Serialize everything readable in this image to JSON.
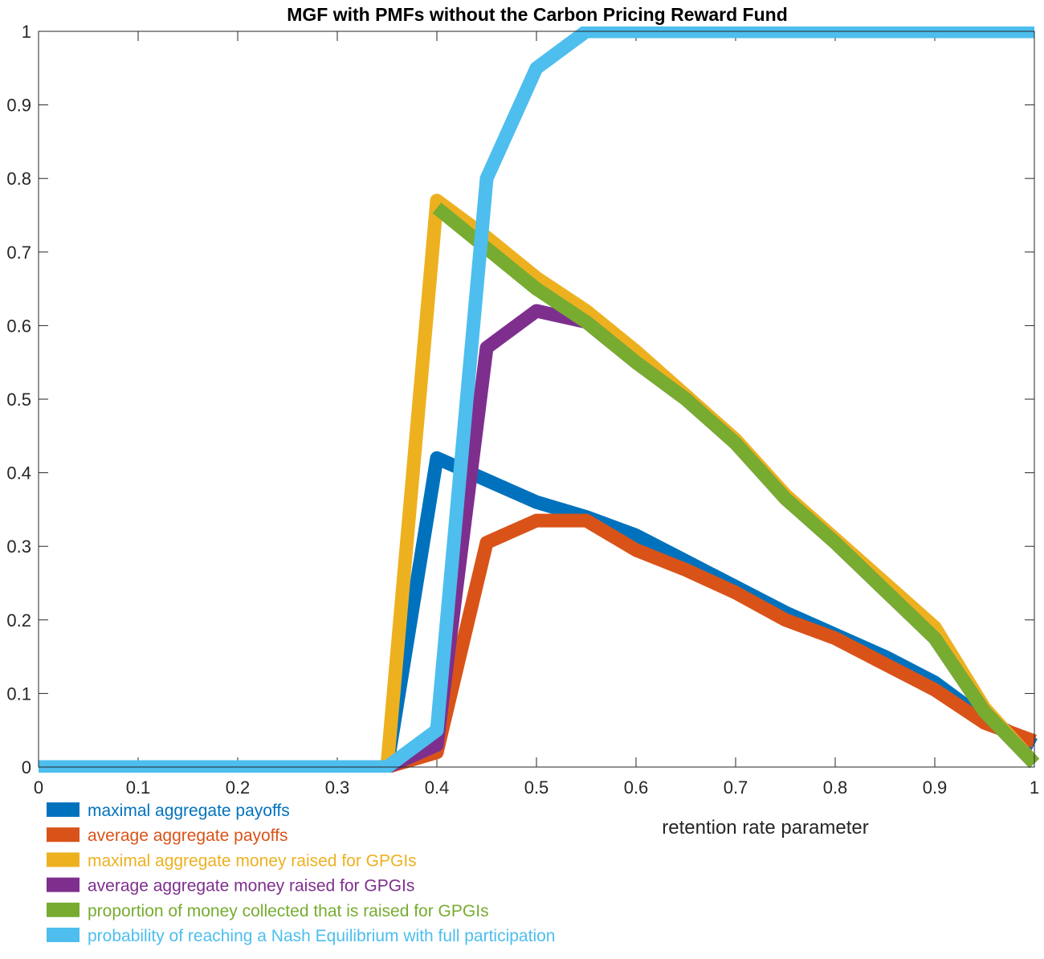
{
  "chart_data": {
    "type": "line",
    "title": "MGF with PMFs without the Carbon Pricing Reward Fund",
    "xlabel": "retention rate parameter",
    "ylabel": "",
    "xlim": [
      0,
      1
    ],
    "ylim": [
      0,
      1
    ],
    "xticks": [
      "0",
      "0.1",
      "0.2",
      "0.3",
      "0.4",
      "0.5",
      "0.6",
      "0.7",
      "0.8",
      "0.9",
      "1"
    ],
    "yticks": [
      "0",
      "0.1",
      "0.2",
      "0.3",
      "0.4",
      "0.5",
      "0.6",
      "0.7",
      "0.8",
      "0.9",
      "1"
    ],
    "grid": false,
    "legend_position": "bottom-left",
    "series": [
      {
        "name": "maximal aggregate payoffs",
        "color": "#0072BD",
        "x": [
          0,
          0.35,
          0.4,
          0.45,
          0.5,
          0.55,
          0.6,
          0.65,
          0.7,
          0.75,
          0.8,
          0.85,
          0.9,
          0.95,
          1.0
        ],
        "y": [
          0,
          0,
          0.42,
          0.39,
          0.36,
          0.34,
          0.315,
          0.28,
          0.245,
          0.21,
          0.18,
          0.15,
          0.115,
          0.065,
          0.03
        ]
      },
      {
        "name": "average aggregate payoffs",
        "color": "#D95319",
        "x": [
          0,
          0.35,
          0.4,
          0.45,
          0.5,
          0.55,
          0.6,
          0.65,
          0.7,
          0.75,
          0.8,
          0.85,
          0.9,
          0.95,
          1.0
        ],
        "y": [
          0,
          0,
          0.02,
          0.305,
          0.335,
          0.335,
          0.295,
          0.268,
          0.237,
          0.2,
          0.175,
          0.14,
          0.105,
          0.06,
          0.035
        ]
      },
      {
        "name": "maximal aggregate money raised for GPGIs",
        "color": "#EDB120",
        "x": [
          0,
          0.35,
          0.4,
          0.45,
          0.5,
          0.55,
          0.6,
          0.65,
          0.7,
          0.75,
          0.8,
          0.85,
          0.9,
          0.95,
          1.0
        ],
        "y": [
          0,
          0,
          0.77,
          0.72,
          0.665,
          0.62,
          0.565,
          0.505,
          0.445,
          0.37,
          0.31,
          0.25,
          0.19,
          0.08,
          0.005
        ]
      },
      {
        "name": "average aggregate money raised for GPGIs",
        "color": "#7E2F8E",
        "x": [
          0,
          0.35,
          0.4,
          0.45,
          0.5,
          0.55,
          0.6,
          0.65,
          0.7,
          0.75,
          0.8,
          0.85,
          0.9,
          0.95,
          1.0
        ],
        "y": [
          0,
          0,
          0.03,
          0.57,
          0.62,
          0.605,
          0.55,
          0.5,
          0.44,
          0.365,
          0.305,
          0.24,
          0.175,
          0.075,
          0.005
        ]
      },
      {
        "name": "proportion of money collected that is raised for GPGIs",
        "color": "#77AC30",
        "x": [
          0.4,
          0.45,
          0.5,
          0.55,
          0.6,
          0.65,
          0.7,
          0.75,
          0.8,
          0.85,
          0.9,
          0.95,
          1.0
        ],
        "y": [
          0.76,
          0.705,
          0.65,
          0.605,
          0.55,
          0.5,
          0.44,
          0.365,
          0.305,
          0.24,
          0.175,
          0.075,
          0.005
        ]
      },
      {
        "name": "probability of reaching a Nash Equilibrium with full participation",
        "color": "#4DBEEE",
        "x": [
          0,
          0.35,
          0.4,
          0.45,
          0.5,
          0.55,
          0.6,
          0.65,
          0.7,
          0.75,
          0.8,
          0.85,
          0.9,
          0.95,
          1.0
        ],
        "y": [
          0,
          0,
          0.05,
          0.8,
          0.95,
          1,
          1,
          1,
          1,
          1,
          1,
          1,
          1,
          1,
          1
        ]
      }
    ]
  }
}
